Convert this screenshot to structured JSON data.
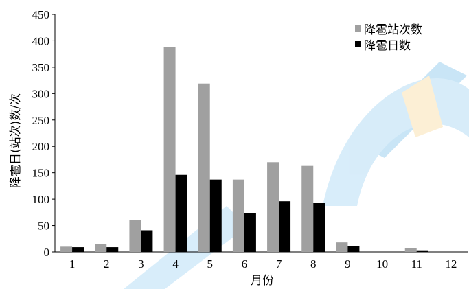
{
  "chart_data": {
    "type": "bar",
    "categories": [
      "1",
      "2",
      "3",
      "4",
      "5",
      "6",
      "7",
      "8",
      "9",
      "10",
      "11",
      "12"
    ],
    "series": [
      {
        "name": "降雹站次数",
        "values": [
          10,
          15,
          60,
          388,
          319,
          137,
          170,
          163,
          18,
          0,
          7,
          0
        ],
        "color": "#a0a0a0"
      },
      {
        "name": "降雹日数",
        "values": [
          9,
          9,
          41,
          146,
          137,
          74,
          96,
          93,
          11,
          0,
          3,
          0
        ],
        "color": "#000000"
      }
    ],
    "title": "",
    "xlabel": "月份",
    "ylabel": "降雹日(站次)数/次",
    "ylim": [
      0,
      450
    ],
    "yticks": [
      0,
      50,
      100,
      150,
      200,
      250,
      300,
      350,
      400,
      450
    ],
    "grid": false,
    "legend_position": "top-right"
  }
}
